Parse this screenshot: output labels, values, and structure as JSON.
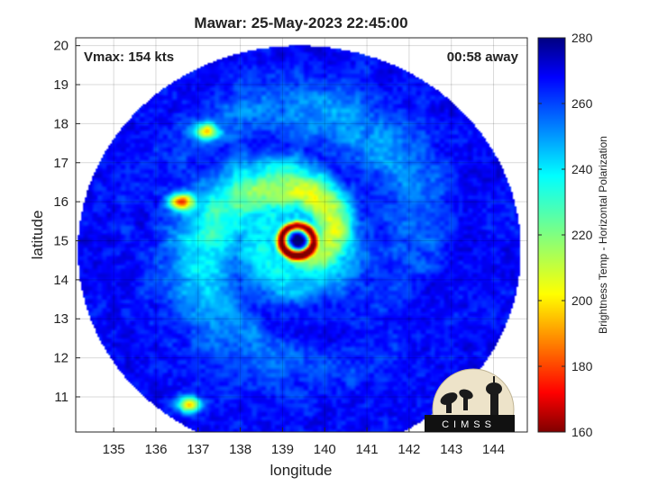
{
  "chart_data": {
    "type": "heatmap",
    "title": "Mawar: 25-May-2023 22:45:00",
    "xlabel": "longitude",
    "ylabel": "latitude",
    "xlim": [
      134.1,
      144.8
    ],
    "ylim": [
      10.1,
      20.2
    ],
    "xticks": [
      135,
      136,
      137,
      138,
      139,
      140,
      141,
      142,
      143,
      144
    ],
    "yticks": [
      11,
      12,
      13,
      14,
      15,
      16,
      17,
      18,
      19,
      20
    ],
    "grid": true,
    "annotations": {
      "vmax": "Vmax: 154 kts",
      "away": "00:58 away"
    },
    "colorbar": {
      "label": "Brightness Temp - Horizontal Polarization",
      "min": 160,
      "max": 280,
      "ticks": [
        160,
        180,
        200,
        220,
        240,
        260,
        280
      ],
      "colormap": "jet-reversed"
    },
    "swath": {
      "center": [
        139.4,
        14.75
      ],
      "radius_deg": 5.25,
      "background_value": 265
    },
    "eye": {
      "lon": 139.35,
      "lat": 15.0,
      "value": 270
    },
    "features": [
      {
        "name": "eyewall",
        "lon": 139.35,
        "lat": 15.0,
        "min_value": 175
      },
      {
        "name": "inner rainband",
        "value": 210
      },
      {
        "name": "convection-nw-1",
        "lon": 137.2,
        "lat": 17.8,
        "value": 208
      },
      {
        "name": "convection-nw-2",
        "lon": 136.6,
        "lat": 16.0,
        "value": 195
      },
      {
        "name": "convection-sw",
        "lon": 136.8,
        "lat": 10.8,
        "value": 200
      }
    ]
  },
  "logo": {
    "text": "CIMSS"
  }
}
